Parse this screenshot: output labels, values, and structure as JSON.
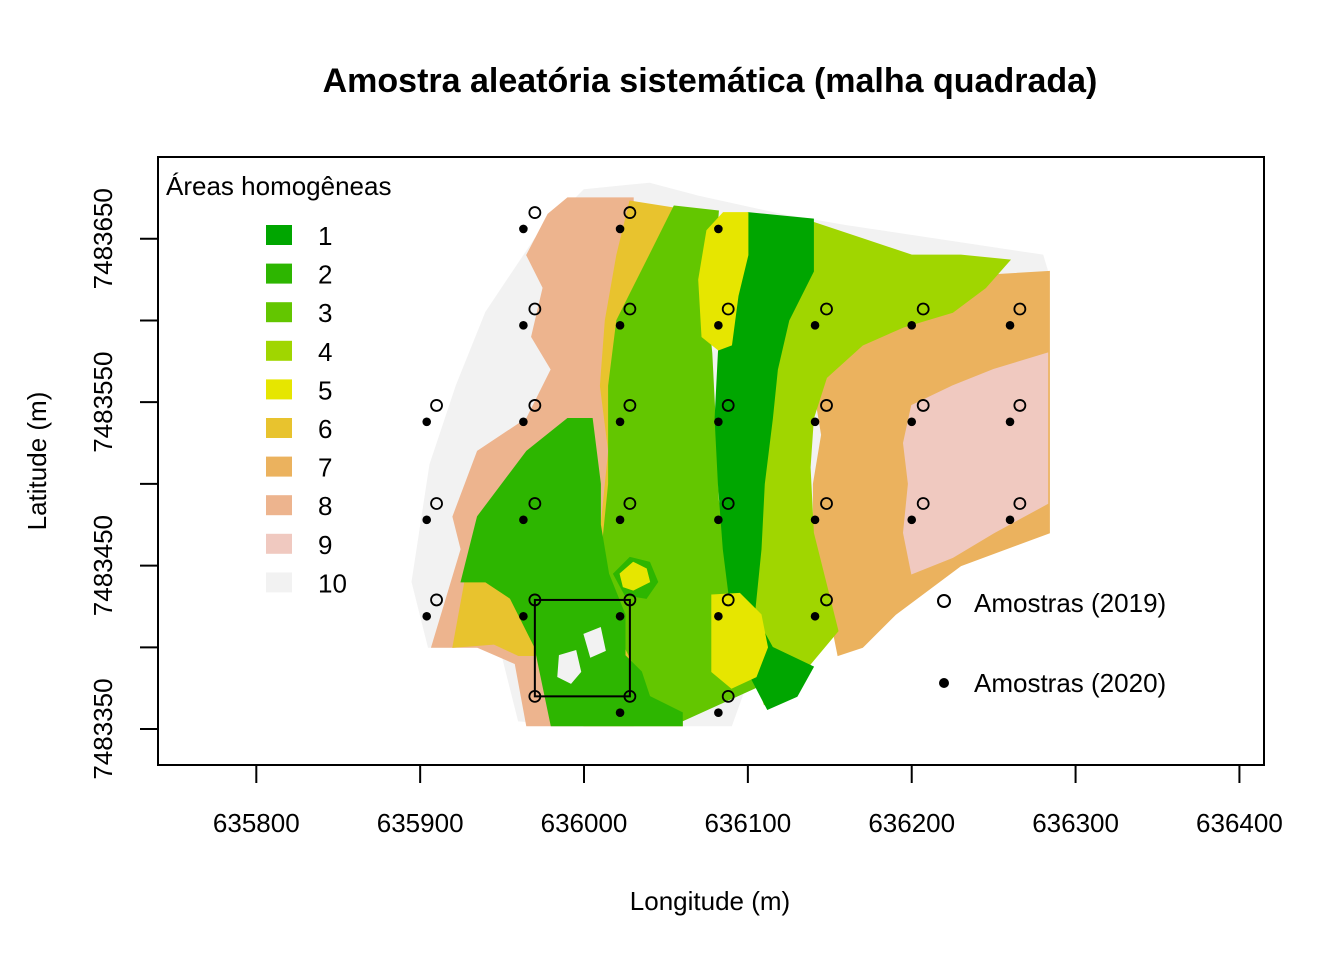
{
  "chart_data": {
    "type": "map",
    "title": "Amostra aleatória sistemática (malha quadrada)",
    "xlabel": "Longitude (m)",
    "ylabel": "Latitude (m)",
    "xlim": [
      635740,
      636415
    ],
    "ylim": [
      7483328,
      7483700
    ],
    "x_ticks": [
      635800,
      635900,
      636000,
      636100,
      636200,
      636300,
      636400
    ],
    "x_tick_labels": [
      "635800",
      "635900",
      "636000",
      "636100",
      "636200",
      "636300",
      "636400"
    ],
    "y_ticks": [
      7483350,
      7483400,
      7483450,
      7483500,
      7483550,
      7483600,
      7483650
    ],
    "y_tick_labels": [
      "7483350",
      "7483450",
      "7483550",
      "7483650"
    ],
    "y_labeled_ticks": [
      7483350,
      7483450,
      7483550,
      7483650
    ],
    "zones_legend_title": "Áreas homogêneas",
    "zones": [
      {
        "label": "1",
        "color": "#00A600"
      },
      {
        "label": "2",
        "color": "#2DB600"
      },
      {
        "label": "3",
        "color": "#63C600"
      },
      {
        "label": "4",
        "color": "#A0D600"
      },
      {
        "label": "5",
        "color": "#E6E600"
      },
      {
        "label": "6",
        "color": "#E8C32E"
      },
      {
        "label": "7",
        "color": "#EBB25E"
      },
      {
        "label": "8",
        "color": "#EDB48E"
      },
      {
        "label": "9",
        "color": "#F0C9C0"
      },
      {
        "label": "10",
        "color": "#F2F2F2"
      }
    ],
    "samples_2019": {
      "name": "Amostras (2019)",
      "marker": "open-circle",
      "points": [
        [
          635970,
          7483666
        ],
        [
          636028,
          7483666
        ],
        [
          635970,
          7483607
        ],
        [
          636028,
          7483607
        ],
        [
          636088,
          7483607
        ],
        [
          636148,
          7483607
        ],
        [
          636207,
          7483607
        ],
        [
          636266,
          7483607
        ],
        [
          635910,
          7483548
        ],
        [
          635970,
          7483548
        ],
        [
          636028,
          7483548
        ],
        [
          636088,
          7483548
        ],
        [
          636148,
          7483548
        ],
        [
          636207,
          7483548
        ],
        [
          636266,
          7483548
        ],
        [
          635910,
          7483488
        ],
        [
          635970,
          7483488
        ],
        [
          636028,
          7483488
        ],
        [
          636088,
          7483488
        ],
        [
          636148,
          7483488
        ],
        [
          636207,
          7483488
        ],
        [
          636266,
          7483488
        ],
        [
          635910,
          7483429
        ],
        [
          635970,
          7483429
        ],
        [
          636028,
          7483429
        ],
        [
          636088,
          7483429
        ],
        [
          636148,
          7483429
        ],
        [
          635970,
          7483370
        ],
        [
          636028,
          7483370
        ],
        [
          636088,
          7483370
        ]
      ]
    },
    "samples_2020": {
      "name": "Amostras (2020)",
      "marker": "filled-circle",
      "points": [
        [
          635963,
          7483656
        ],
        [
          636022,
          7483656
        ],
        [
          636082,
          7483656
        ],
        [
          635963,
          7483597
        ],
        [
          636022,
          7483597
        ],
        [
          636082,
          7483597
        ],
        [
          636141,
          7483597
        ],
        [
          636200,
          7483597
        ],
        [
          636260,
          7483597
        ],
        [
          635904,
          7483538
        ],
        [
          635963,
          7483538
        ],
        [
          636022,
          7483538
        ],
        [
          636082,
          7483538
        ],
        [
          636141,
          7483538
        ],
        [
          636200,
          7483538
        ],
        [
          636260,
          7483538
        ],
        [
          635904,
          7483478
        ],
        [
          635963,
          7483478
        ],
        [
          636022,
          7483478
        ],
        [
          636082,
          7483478
        ],
        [
          636141,
          7483478
        ],
        [
          636200,
          7483478
        ],
        [
          636260,
          7483478
        ],
        [
          635904,
          7483419
        ],
        [
          635963,
          7483419
        ],
        [
          636022,
          7483419
        ],
        [
          636082,
          7483419
        ],
        [
          636141,
          7483419
        ],
        [
          636022,
          7483360
        ],
        [
          636082,
          7483360
        ]
      ]
    },
    "highlight_rectangle": {
      "x": [
        635970,
        636028
      ],
      "y": [
        7483370,
        7483429
      ]
    },
    "zone_polygons": [
      {
        "zone": 10,
        "points": [
          [
            635906,
            7483512
          ],
          [
            635922,
            7483560
          ],
          [
            635940,
            7483605
          ],
          [
            635970,
            7483650
          ],
          [
            636000,
            7483680
          ],
          [
            636040,
            7483684
          ],
          [
            636070,
            7483676
          ],
          [
            636120,
            7483665
          ],
          [
            636160,
            7483658
          ],
          [
            636280,
            7483640
          ],
          [
            636283,
            7483630
          ],
          [
            636283,
            7483525
          ],
          [
            636260,
            7483510
          ],
          [
            636180,
            7483460
          ],
          [
            636140,
            7483420
          ],
          [
            636100,
            7483380
          ],
          [
            636090,
            7483352
          ],
          [
            636040,
            7483352
          ],
          [
            636000,
            7483352
          ],
          [
            635960,
            7483355
          ],
          [
            635950,
            7483395
          ],
          [
            635935,
            7483400
          ],
          [
            635905,
            7483400
          ],
          [
            635895,
            7483440
          ]
        ]
      },
      {
        "zone": 8,
        "points": [
          [
            635907,
            7483400
          ],
          [
            635925,
            7483460
          ],
          [
            635920,
            7483480
          ],
          [
            635935,
            7483520
          ],
          [
            635965,
            7483540
          ],
          [
            635980,
            7483570
          ],
          [
            635968,
            7483590
          ],
          [
            635975,
            7483620
          ],
          [
            635965,
            7483640
          ],
          [
            635978,
            7483665
          ],
          [
            635990,
            7483675
          ],
          [
            636030,
            7483675
          ],
          [
            636030,
            7483352
          ],
          [
            635965,
            7483352
          ],
          [
            635958,
            7483390
          ],
          [
            635935,
            7483400
          ]
        ]
      },
      {
        "zone": 6,
        "points": [
          [
            635920,
            7483400
          ],
          [
            635930,
            7483455
          ],
          [
            635950,
            7483470
          ],
          [
            636010,
            7483470
          ],
          [
            636015,
            7483520
          ],
          [
            636010,
            7483560
          ],
          [
            636013,
            7483600
          ],
          [
            636020,
            7483640
          ],
          [
            636028,
            7483673
          ],
          [
            636060,
            7483668
          ],
          [
            636060,
            7483352
          ],
          [
            636000,
            7483352
          ],
          [
            636000,
            7483395
          ],
          [
            635960,
            7483395
          ],
          [
            635945,
            7483402
          ]
        ]
      },
      {
        "zone": 7,
        "points": [
          [
            636140,
            7483560
          ],
          [
            636150,
            7483590
          ],
          [
            636170,
            7483605
          ],
          [
            636200,
            7483615
          ],
          [
            636230,
            7483620
          ],
          [
            636250,
            7483628
          ],
          [
            636284,
            7483630
          ],
          [
            636284,
            7483470
          ],
          [
            636230,
            7483450
          ],
          [
            636190,
            7483420
          ],
          [
            636170,
            7483400
          ],
          [
            636155,
            7483395
          ],
          [
            636150,
            7483420
          ],
          [
            636140,
            7483460
          ],
          [
            636140,
            7483500
          ],
          [
            636145,
            7483530
          ]
        ]
      },
      {
        "zone": 9,
        "points": [
          [
            636200,
            7483548
          ],
          [
            636225,
            7483560
          ],
          [
            636250,
            7483570
          ],
          [
            636283,
            7483580
          ],
          [
            636283,
            7483488
          ],
          [
            636250,
            7483470
          ],
          [
            636225,
            7483455
          ],
          [
            636200,
            7483445
          ],
          [
            636195,
            7483470
          ],
          [
            636198,
            7483500
          ],
          [
            636195,
            7483525
          ]
        ]
      },
      {
        "zone": 3,
        "points": [
          [
            636055,
            7483670
          ],
          [
            636082,
            7483667
          ],
          [
            636080,
            7483640
          ],
          [
            636075,
            7483610
          ],
          [
            636078,
            7483580
          ],
          [
            636080,
            7483540
          ],
          [
            636082,
            7483490
          ],
          [
            636090,
            7483450
          ],
          [
            636110,
            7483420
          ],
          [
            636115,
            7483380
          ],
          [
            636060,
            7483355
          ],
          [
            636040,
            7483370
          ],
          [
            636020,
            7483410
          ],
          [
            636010,
            7483450
          ],
          [
            636015,
            7483500
          ],
          [
            636015,
            7483560
          ],
          [
            636020,
            7483600
          ],
          [
            636040,
            7483640
          ]
        ]
      },
      {
        "zone": 4,
        "points": [
          [
            636140,
            7483660
          ],
          [
            636170,
            7483650
          ],
          [
            636200,
            7483640
          ],
          [
            636230,
            7483640
          ],
          [
            636260,
            7483637
          ],
          [
            636245,
            7483620
          ],
          [
            636225,
            7483605
          ],
          [
            636195,
            7483596
          ],
          [
            636170,
            7483585
          ],
          [
            636148,
            7483565
          ],
          [
            636140,
            7483540
          ],
          [
            636138,
            7483510
          ],
          [
            636140,
            7483470
          ],
          [
            636150,
            7483430
          ],
          [
            636155,
            7483410
          ],
          [
            636130,
            7483380
          ],
          [
            636110,
            7483365
          ],
          [
            636100,
            7483395
          ],
          [
            636105,
            7483450
          ],
          [
            636110,
            7483500
          ],
          [
            636115,
            7483560
          ],
          [
            636120,
            7483600
          ],
          [
            636130,
            7483640
          ]
        ]
      },
      {
        "zone": 1,
        "points": [
          [
            636100,
            7483666
          ],
          [
            636140,
            7483662
          ],
          [
            636140,
            7483630
          ],
          [
            636125,
            7483600
          ],
          [
            636118,
            7483570
          ],
          [
            636115,
            7483540
          ],
          [
            636110,
            7483500
          ],
          [
            636108,
            7483460
          ],
          [
            636104,
            7483420
          ],
          [
            636115,
            7483400
          ],
          [
            636140,
            7483388
          ],
          [
            636130,
            7483370
          ],
          [
            636112,
            7483362
          ],
          [
            636100,
            7483385
          ],
          [
            636090,
            7483420
          ],
          [
            636085,
            7483460
          ],
          [
            636082,
            7483500
          ],
          [
            636080,
            7483540
          ],
          [
            636082,
            7483580
          ],
          [
            636085,
            7483620
          ],
          [
            636090,
            7483650
          ]
        ]
      },
      {
        "zone": 5,
        "points": [
          [
            636085,
            7483666
          ],
          [
            636100,
            7483666
          ],
          [
            636100,
            7483640
          ],
          [
            636094,
            7483615
          ],
          [
            636090,
            7483585
          ],
          [
            636082,
            7483582
          ],
          [
            636072,
            7483590
          ],
          [
            636070,
            7483625
          ],
          [
            636075,
            7483655
          ]
        ]
      },
      {
        "zone": 5,
        "points": [
          [
            636078,
            7483432
          ],
          [
            636095,
            7483433
          ],
          [
            636108,
            7483420
          ],
          [
            636112,
            7483400
          ],
          [
            636105,
            7483382
          ],
          [
            636090,
            7483375
          ],
          [
            636078,
            7483385
          ]
        ]
      },
      {
        "zone": 2,
        "points": [
          [
            635925,
            7483440
          ],
          [
            635935,
            7483480
          ],
          [
            635965,
            7483520
          ],
          [
            635990,
            7483540
          ],
          [
            636005,
            7483540
          ],
          [
            636010,
            7483500
          ],
          [
            636010,
            7483475
          ],
          [
            636015,
            7483445
          ],
          [
            636025,
            7483420
          ],
          [
            636025,
            7483395
          ],
          [
            636035,
            7483385
          ],
          [
            636040,
            7483370
          ],
          [
            636060,
            7483360
          ],
          [
            636060,
            7483352
          ],
          [
            636050,
            7483352
          ],
          [
            636000,
            7483352
          ],
          [
            635980,
            7483352
          ],
          [
            635970,
            7483400
          ],
          [
            635955,
            7483430
          ],
          [
            635940,
            7483440
          ]
        ]
      },
      {
        "zone": 2,
        "points": [
          [
            636018,
            7483445
          ],
          [
            636028,
            7483455
          ],
          [
            636040,
            7483452
          ],
          [
            636045,
            7483440
          ],
          [
            636038,
            7483430
          ],
          [
            636025,
            7483432
          ]
        ]
      },
      {
        "zone": 5,
        "points": [
          [
            636022,
            7483445
          ],
          [
            636030,
            7483452
          ],
          [
            636038,
            7483448
          ],
          [
            636040,
            7483440
          ],
          [
            636030,
            7483435
          ],
          [
            636024,
            7483437
          ]
        ]
      },
      {
        "zone": 10,
        "points": [
          [
            635985,
            7483395
          ],
          [
            635995,
            7483398
          ],
          [
            635998,
            7483385
          ],
          [
            635992,
            7483378
          ],
          [
            635984,
            7483382
          ]
        ]
      },
      {
        "zone": 10,
        "points": [
          [
            636000,
            7483408
          ],
          [
            636010,
            7483412
          ],
          [
            636013,
            7483398
          ],
          [
            636004,
            7483394
          ]
        ]
      }
    ]
  },
  "legend": {
    "samples_2019_label": "Amostras (2019)",
    "samples_2020_label": "Amostras (2020)"
  }
}
